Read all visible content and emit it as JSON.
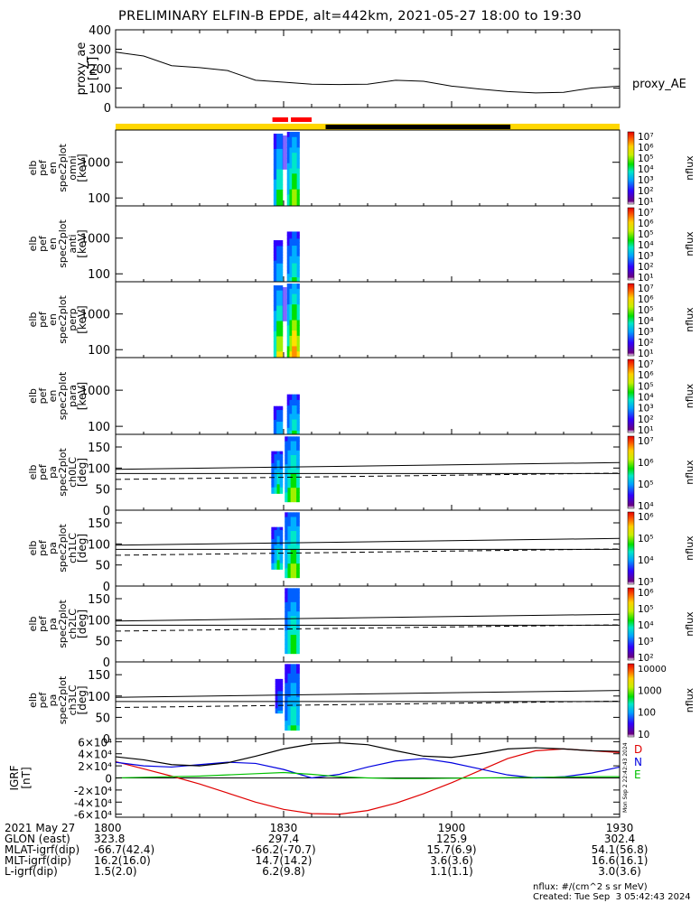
{
  "title": "PRELIMINARY ELFIN-B EPDE, alt=442km, 2021-05-27 18:00 to 19:30",
  "colors": {
    "day_bar": "#ffd700",
    "night_bar": "#000000",
    "science_bar": "#ff0000",
    "D": "#e00000",
    "N": "#0000e0",
    "E": "#00c000"
  },
  "chart_data": [
    {
      "type": "line",
      "title": "",
      "ylabel_lines": [
        "proxy_ae",
        "[nT]"
      ],
      "legend": "proxy_AE",
      "ylim": [
        0,
        400
      ],
      "yticks": [
        "0",
        "100",
        "200",
        "300",
        "400"
      ],
      "x": [
        0,
        5,
        10,
        15,
        20,
        25,
        30,
        35,
        40,
        45,
        50,
        55,
        60,
        65,
        70,
        75,
        80,
        85,
        90
      ],
      "values": [
        285,
        265,
        215,
        205,
        190,
        140,
        130,
        120,
        118,
        120,
        140,
        135,
        110,
        95,
        82,
        75,
        78,
        100,
        110
      ]
    },
    {
      "type": "heatmap",
      "ylabel_lines": [
        "elb",
        "pef",
        "en",
        "spec2plot",
        "omni",
        "[keV]"
      ],
      "yscale": "log",
      "yticks": [
        "100",
        "1000"
      ],
      "cbar_label": "nflux",
      "cbar_ticks": [
        "10⁷",
        "10⁶",
        "10⁵",
        "10⁴",
        "10³",
        "10²",
        "10¹"
      ]
    },
    {
      "type": "heatmap",
      "ylabel_lines": [
        "elb",
        "pef",
        "en",
        "spec2plot",
        "anti",
        "[keV]"
      ],
      "yscale": "log",
      "yticks": [
        "100",
        "1000"
      ],
      "cbar_label": "nflux",
      "cbar_ticks": [
        "10⁷",
        "10⁶",
        "10⁵",
        "10⁴",
        "10³",
        "10²",
        "10¹"
      ]
    },
    {
      "type": "heatmap",
      "ylabel_lines": [
        "elb",
        "pef",
        "en",
        "spec2plot",
        "perp",
        "[keV]"
      ],
      "yscale": "log",
      "yticks": [
        "100",
        "1000"
      ],
      "cbar_label": "nflux",
      "cbar_ticks": [
        "10⁷",
        "10⁶",
        "10⁵",
        "10⁴",
        "10³",
        "10²",
        "10¹"
      ]
    },
    {
      "type": "heatmap",
      "ylabel_lines": [
        "elb",
        "pef",
        "en",
        "spec2plot",
        "para",
        "[keV]"
      ],
      "yscale": "log",
      "yticks": [
        "100",
        "1000"
      ],
      "cbar_label": "nflux",
      "cbar_ticks": [
        "10⁷",
        "10⁶",
        "10⁵",
        "10⁴",
        "10³",
        "10²",
        "10¹"
      ]
    },
    {
      "type": "heatmap",
      "ylabel_lines": [
        "elb",
        "pef",
        "pa",
        "spec2plot",
        "ch0LC",
        "[deg]"
      ],
      "ylim": [
        0,
        180
      ],
      "yticks": [
        "0",
        "50",
        "100",
        "150"
      ],
      "cbar_label": "nflux",
      "cbar_ticks": [
        "10⁷",
        "10⁶",
        "10⁵",
        "10⁴"
      ]
    },
    {
      "type": "heatmap",
      "ylabel_lines": [
        "elb",
        "pef",
        "pa",
        "spec2plot",
        "ch1LC",
        "[deg]"
      ],
      "ylim": [
        0,
        180
      ],
      "yticks": [
        "0",
        "50",
        "100",
        "150"
      ],
      "cbar_label": "nflux",
      "cbar_ticks": [
        "10⁶",
        "10⁵",
        "10⁴",
        "10³"
      ]
    },
    {
      "type": "heatmap",
      "ylabel_lines": [
        "elb",
        "pef",
        "pa",
        "spec2plot",
        "ch2LC",
        "[deg]"
      ],
      "ylim": [
        0,
        180
      ],
      "yticks": [
        "0",
        "50",
        "100",
        "150"
      ],
      "cbar_label": "nflux",
      "cbar_ticks": [
        "10⁶",
        "10⁵",
        "10⁴",
        "10³",
        "10²"
      ]
    },
    {
      "type": "heatmap",
      "ylabel_lines": [
        "elb",
        "pef",
        "pa",
        "spec2plot",
        "ch3LC",
        "[deg]"
      ],
      "ylim": [
        0,
        180
      ],
      "yticks": [
        "0",
        "50",
        "100",
        "150"
      ],
      "cbar_label": "nflux",
      "cbar_ticks": [
        "10000",
        "1000",
        "100",
        "10"
      ]
    },
    {
      "type": "line",
      "ylabel_lines": [
        "IGRF",
        "[nT]"
      ],
      "ylim": [
        -65000,
        65000
      ],
      "yticks": [
        "-6×10⁴",
        "-4×10⁴",
        "-2×10⁴",
        "0",
        "2×10⁴",
        "4×10⁴",
        "6×10⁴"
      ],
      "legend": [
        "D",
        "N",
        "E"
      ],
      "x": [
        0,
        5,
        10,
        15,
        20,
        25,
        30,
        35,
        40,
        45,
        50,
        55,
        60,
        65,
        70,
        75,
        80,
        85,
        90
      ],
      "series": [
        {
          "name": "D",
          "values": [
            27000,
            15000,
            3000,
            -10000,
            -25000,
            -40000,
            -52000,
            -59000,
            -60000,
            -54000,
            -42000,
            -26000,
            -8000,
            12000,
            32000,
            45000,
            48000,
            45000,
            42000
          ]
        },
        {
          "name": "N",
          "values": [
            26000,
            20000,
            18000,
            22000,
            26000,
            24000,
            14000,
            0,
            6000,
            18000,
            28000,
            32000,
            25000,
            15000,
            5000,
            0,
            2000,
            8000,
            18000
          ]
        },
        {
          "name": "E",
          "values": [
            0,
            1000,
            2000,
            3000,
            5000,
            7000,
            9000,
            6000,
            2000,
            0,
            -1000,
            -1000,
            -500,
            0,
            500,
            1000,
            1500,
            2000,
            2000
          ]
        },
        {
          "name": "",
          "values": [
            35000,
            30000,
            22000,
            20000,
            25000,
            36000,
            48000,
            56000,
            58000,
            55000,
            45000,
            36000,
            34000,
            40000,
            48000,
            50000,
            48000,
            45000,
            44000
          ]
        }
      ]
    }
  ],
  "bottom_rows": {
    "labels": [
      "2021 May 27",
      "GLON (east)",
      "MLAT-igrf(dip)",
      "MLT-igrf(dip)",
      "L-igrf(dip)"
    ],
    "columns": [
      [
        "1800",
        "323.8",
        "-66.7(42.4)",
        "16.2(16.0)",
        "1.5(2.0)"
      ],
      [
        "1830",
        "297.4",
        "-66.2(-70.7)",
        "14.7(14.2)",
        "6.2(9.8)"
      ],
      [
        "1900",
        "125.9",
        "15.7(6.9)",
        "3.6(3.6)",
        "1.1(1.1)"
      ],
      [
        "1930",
        "302.4",
        "54.1(56.8)",
        "16.6(16.1)",
        "3.0(3.6)"
      ]
    ]
  },
  "footer": {
    "units": "nflux: #/(cm^2 s sr MeV)",
    "created": "Created: Tue Sep  3 05:42:43 2024"
  },
  "side_stamp": "Mon Sep  2 22:42:43 2024"
}
